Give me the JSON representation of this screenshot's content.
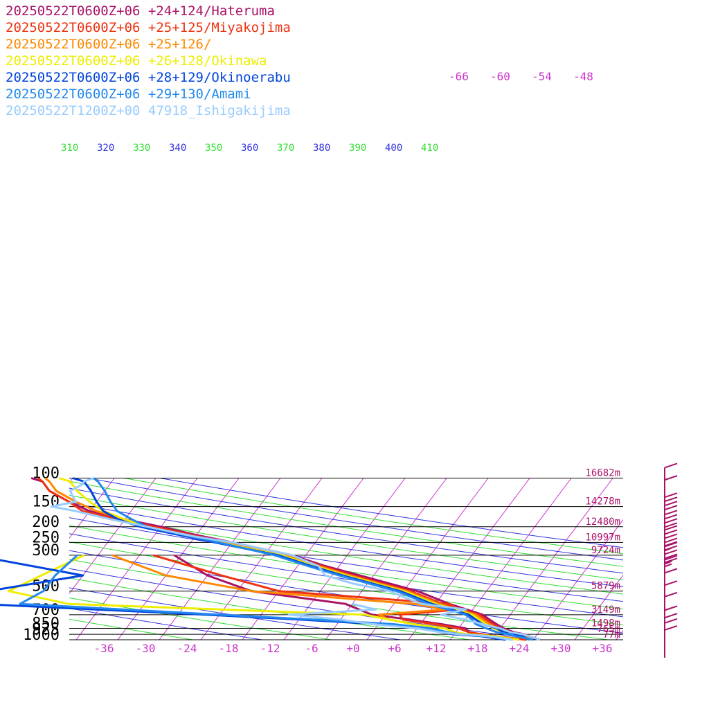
{
  "chart_data": {
    "type": "line",
    "title": "",
    "xlabel": "",
    "ylabel": "",
    "y_scale": "log-pressure",
    "ylim": [
      1000,
      100
    ],
    "xlim": [
      -40,
      40
    ],
    "x_tick_labels": [
      "-36",
      "-30",
      "-24",
      "-18",
      "-12",
      "-6",
      "+0",
      "+6",
      "+12",
      "+18",
      "+24",
      "+30",
      "+36"
    ],
    "x_tick_values": [
      -36,
      -30,
      -24,
      -18,
      -12,
      -6,
      0,
      6,
      12,
      18,
      24,
      30,
      36
    ],
    "pressure_labels": [
      "100",
      "150",
      "200",
      "250",
      "300",
      "500",
      "700",
      "850",
      "925",
      "1000"
    ],
    "pressure_levels": [
      100,
      150,
      200,
      250,
      300,
      500,
      700,
      850,
      925,
      1000
    ],
    "height_labels": [
      "16682m",
      "14278m",
      "12480m",
      "10997m",
      "9724m",
      "5879m",
      "3149m",
      "1498m",
      "765m",
      "77m"
    ],
    "mixing_ratio_labels": [
      "-66",
      "-60",
      "-54",
      "-48"
    ],
    "theta_labels": [
      "310",
      "320",
      "330",
      "340",
      "350",
      "360",
      "370",
      "380",
      "390",
      "400",
      "410"
    ],
    "grid": true,
    "legend_position": "top-left",
    "colors": {
      "isotherm": "#cc33cc",
      "isobar": "#000000",
      "dry_adiabat_green": "#33dd33",
      "dry_adiabat_blue": "#3333dd",
      "wind_barb": "#aa1166"
    },
    "series": [
      {
        "name": "20250522T0600Z+06 +24+124/Hateruma",
        "color": "#aa1166",
        "temperature": [
          [
            1000,
            27
          ],
          [
            950,
            25
          ],
          [
            925,
            24.2
          ],
          [
            900,
            22.5
          ],
          [
            850,
            20.5
          ],
          [
            800,
            19
          ],
          [
            750,
            17.5
          ],
          [
            700,
            16
          ],
          [
            600,
            10
          ],
          [
            500,
            4
          ],
          [
            400,
            -6
          ],
          [
            350,
            -12
          ],
          [
            300,
            -18
          ],
          [
            250,
            -28
          ],
          [
            225,
            -34
          ],
          [
            200,
            -40
          ],
          [
            180,
            -46
          ],
          [
            160,
            -52
          ],
          [
            140,
            -56
          ],
          [
            120,
            -60
          ],
          [
            105,
            -62
          ],
          [
            100,
            -64
          ]
        ],
        "dewpoint": [
          [
            1000,
            25
          ],
          [
            950,
            20
          ],
          [
            925,
            18
          ],
          [
            900,
            16
          ],
          [
            850,
            15
          ],
          [
            800,
            11
          ],
          [
            750,
            6
          ],
          [
            700,
            0
          ],
          [
            600,
            -5
          ],
          [
            500,
            -20
          ],
          [
            400,
            -28
          ],
          [
            300,
            -35
          ]
        ]
      },
      {
        "name": "20250522T0600Z+06 +25+125/Miyakojima",
        "color": "#ee3311",
        "temperature": [
          [
            1000,
            26
          ],
          [
            950,
            25
          ],
          [
            925,
            23.5
          ],
          [
            900,
            22
          ],
          [
            850,
            20
          ],
          [
            800,
            18.5
          ],
          [
            750,
            17
          ],
          [
            700,
            15.5
          ],
          [
            600,
            9
          ],
          [
            500,
            3
          ],
          [
            400,
            -7
          ],
          [
            350,
            -12.5
          ],
          [
            300,
            -18.5
          ],
          [
            250,
            -29
          ],
          [
            200,
            -41
          ],
          [
            180,
            -47
          ],
          [
            160,
            -53
          ],
          [
            140,
            -56
          ],
          [
            120,
            -60
          ],
          [
            105,
            -62
          ],
          [
            100,
            -63
          ]
        ],
        "dewpoint": [
          [
            1000,
            25
          ],
          [
            950,
            20
          ],
          [
            925,
            18
          ],
          [
            900,
            16
          ],
          [
            850,
            14
          ],
          [
            800,
            10
          ],
          [
            750,
            5
          ],
          [
            700,
            4
          ],
          [
            650,
            12
          ],
          [
            600,
            10
          ],
          [
            500,
            -16
          ],
          [
            400,
            -26
          ],
          [
            300,
            -38
          ]
        ]
      },
      {
        "name": "20250522T0600Z+06 +25+126/",
        "color": "#ff8800",
        "temperature": [
          [
            1000,
            26
          ],
          [
            950,
            24.5
          ],
          [
            925,
            23
          ],
          [
            900,
            21.5
          ],
          [
            850,
            19.5
          ],
          [
            800,
            18
          ],
          [
            750,
            16.5
          ],
          [
            700,
            15
          ],
          [
            600,
            8.5
          ],
          [
            500,
            2.5
          ],
          [
            400,
            -7.5
          ],
          [
            350,
            -13
          ],
          [
            300,
            -19
          ],
          [
            250,
            -29.5
          ],
          [
            200,
            -42
          ],
          [
            180,
            -46
          ],
          [
            160,
            -51
          ],
          [
            140,
            -55
          ],
          [
            120,
            -59
          ],
          [
            105,
            -61
          ],
          [
            100,
            -62
          ]
        ],
        "dewpoint": [
          [
            1000,
            24
          ],
          [
            950,
            20
          ],
          [
            925,
            16
          ],
          [
            900,
            14
          ],
          [
            850,
            12
          ],
          [
            800,
            7
          ],
          [
            750,
            3
          ],
          [
            700,
            1
          ],
          [
            650,
            10
          ],
          [
            600,
            5
          ],
          [
            500,
            -20
          ],
          [
            400,
            -34
          ],
          [
            300,
            -44
          ]
        ]
      },
      {
        "name": "20250522T0600Z+06 +26+128/Okinawa",
        "color": "#eeee00",
        "temperature": [
          [
            1000,
            25.5
          ],
          [
            950,
            24
          ],
          [
            925,
            23
          ],
          [
            900,
            21
          ],
          [
            850,
            19
          ],
          [
            800,
            17.5
          ],
          [
            750,
            16
          ],
          [
            700,
            14.5
          ],
          [
            600,
            8
          ],
          [
            500,
            2
          ],
          [
            400,
            -8
          ],
          [
            350,
            -13.5
          ],
          [
            300,
            -19.5
          ],
          [
            250,
            -30
          ],
          [
            200,
            -42
          ],
          [
            180,
            -46
          ],
          [
            160,
            -50
          ],
          [
            140,
            -53
          ],
          [
            120,
            -56
          ],
          [
            105,
            -58
          ],
          [
            100,
            -60
          ]
        ],
        "dewpoint": [
          [
            1000,
            24
          ],
          [
            950,
            20
          ],
          [
            925,
            16
          ],
          [
            900,
            14
          ],
          [
            850,
            12
          ],
          [
            800,
            7
          ],
          [
            750,
            3
          ],
          [
            700,
            -1
          ],
          [
            600,
            -45
          ],
          [
            500,
            -55
          ],
          [
            400,
            -52
          ],
          [
            300,
            -48
          ]
        ]
      },
      {
        "name": "20250522T0600Z+06 +28+129/Okinoerabu",
        "color": "#0044dd",
        "temperature": [
          [
            1000,
            25.5
          ],
          [
            950,
            24
          ],
          [
            925,
            22.5
          ],
          [
            900,
            21
          ],
          [
            850,
            19.5
          ],
          [
            800,
            17
          ],
          [
            750,
            15.5
          ],
          [
            700,
            14
          ],
          [
            600,
            7.5
          ],
          [
            500,
            1.5
          ],
          [
            400,
            -8.5
          ],
          [
            350,
            -14
          ],
          [
            300,
            -20
          ],
          [
            250,
            -30.5
          ],
          [
            200,
            -43
          ],
          [
            180,
            -47
          ],
          [
            160,
            -50
          ],
          [
            140,
            -52
          ],
          [
            120,
            -54
          ],
          [
            105,
            -56
          ],
          [
            100,
            -58
          ]
        ],
        "dewpoint": [
          [
            1000,
            22
          ],
          [
            950,
            18
          ],
          [
            925,
            14
          ],
          [
            900,
            12
          ],
          [
            850,
            10
          ],
          [
            800,
            2
          ],
          [
            750,
            -10
          ],
          [
            700,
            -24
          ],
          [
            600,
            -58
          ],
          [
            500,
            -58
          ],
          [
            400,
            -46
          ],
          [
            300,
            -64
          ]
        ]
      },
      {
        "name": "20250522T0600Z+06 +29+130/Amami",
        "color": "#2288ee",
        "temperature": [
          [
            1000,
            26
          ],
          [
            950,
            23
          ],
          [
            925,
            22
          ],
          [
            900,
            20
          ],
          [
            850,
            18
          ],
          [
            800,
            16
          ],
          [
            750,
            15
          ],
          [
            700,
            13.5
          ],
          [
            600,
            7
          ],
          [
            500,
            1
          ],
          [
            400,
            -9
          ],
          [
            350,
            -14.5
          ],
          [
            300,
            -20.5
          ],
          [
            250,
            -30
          ],
          [
            200,
            -42
          ],
          [
            180,
            -45
          ],
          [
            160,
            -48
          ],
          [
            140,
            -50
          ],
          [
            120,
            -52
          ],
          [
            105,
            -54
          ],
          [
            100,
            -55
          ]
        ],
        "dewpoint": [
          [
            1000,
            23
          ],
          [
            950,
            19
          ],
          [
            925,
            15
          ],
          [
            900,
            13
          ],
          [
            850,
            10
          ],
          [
            800,
            4
          ],
          [
            750,
            -8
          ],
          [
            700,
            -22
          ],
          [
            600,
            -52
          ],
          [
            500,
            -50
          ],
          [
            400,
            -50
          ],
          [
            300,
            -49
          ]
        ]
      },
      {
        "name": "20250522T1200Z+00 47918_Ishigakijima",
        "color": "#99ccff",
        "temperature": [
          [
            1000,
            27
          ],
          [
            950,
            25
          ],
          [
            925,
            24
          ],
          [
            900,
            22
          ],
          [
            850,
            20
          ],
          [
            800,
            17
          ],
          [
            750,
            14
          ],
          [
            700,
            10
          ],
          [
            650,
            13
          ],
          [
            600,
            6
          ],
          [
            550,
            3
          ],
          [
            500,
            0
          ],
          [
            450,
            -6
          ],
          [
            400,
            -11
          ],
          [
            350,
            -13
          ],
          [
            300,
            -18
          ],
          [
            250,
            -28
          ],
          [
            230,
            -34
          ],
          [
            200,
            -42
          ],
          [
            180,
            -48
          ],
          [
            160,
            -54
          ],
          [
            150,
            -58
          ],
          [
            140,
            -55
          ],
          [
            130,
            -56
          ],
          [
            120,
            -57
          ],
          [
            110,
            -56
          ],
          [
            105,
            -56
          ],
          [
            100,
            -55
          ]
        ],
        "dewpoint": [
          [
            1000,
            23
          ],
          [
            950,
            19
          ],
          [
            925,
            15
          ],
          [
            900,
            12
          ],
          [
            850,
            8
          ],
          [
            800,
            1
          ],
          [
            750,
            -4
          ],
          [
            700,
            -12
          ],
          [
            650,
            0
          ],
          [
            600,
            -4
          ]
        ]
      }
    ],
    "wind_barbs": [
      {
        "pressure": 105,
        "speed_kt": 10
      },
      {
        "pressure": 125,
        "speed_kt": 10
      },
      {
        "pressure": 160,
        "speed_kt": 40
      },
      {
        "pressure": 205,
        "speed_kt": 40
      },
      {
        "pressure": 255,
        "speed_kt": 45
      },
      {
        "pressure": 320,
        "speed_kt": 45
      },
      {
        "pressure": 390,
        "speed_kt": 5
      },
      {
        "pressure": 470,
        "speed_kt": 10
      },
      {
        "pressure": 560,
        "speed_kt": 10
      },
      {
        "pressure": 660,
        "speed_kt": 10
      },
      {
        "pressure": 800,
        "speed_kt": 10
      },
      {
        "pressure": 890,
        "speed_kt": 10
      },
      {
        "pressure": 960,
        "speed_kt": 10
      },
      {
        "pressure": 1060,
        "speed_kt": 10
      }
    ]
  }
}
